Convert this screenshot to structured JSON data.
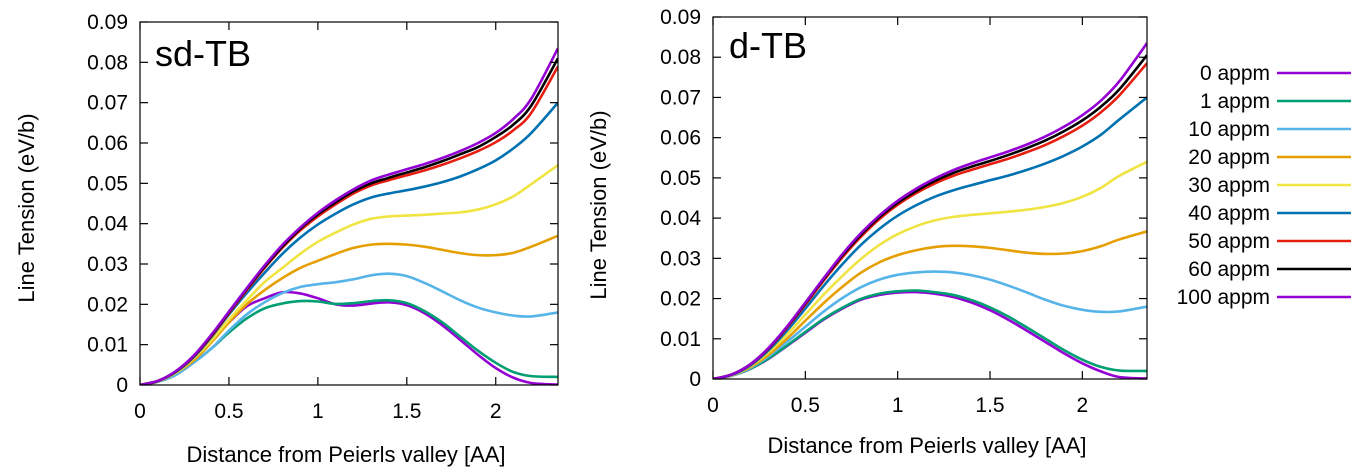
{
  "chart_data": [
    {
      "type": "line",
      "title": "sd-TB",
      "xlabel": "Distance from Peierls valley [AA]",
      "ylabel": "Line Tension (eV/b)",
      "xlim": [
        0,
        2.35
      ],
      "ylim": [
        0,
        0.09
      ],
      "xticks": [
        "0",
        "0.5",
        "1",
        "1.5",
        "2"
      ],
      "yticks": [
        "0",
        "0.01",
        "0.02",
        "0.03",
        "0.04",
        "0.05",
        "0.06",
        "0.07",
        "0.08",
        "0.09"
      ],
      "x": [
        0,
        0.1,
        0.2,
        0.3,
        0.4,
        0.5,
        0.6,
        0.7,
        0.8,
        0.9,
        1.0,
        1.1,
        1.2,
        1.3,
        1.4,
        1.5,
        1.6,
        1.7,
        1.8,
        1.9,
        2.0,
        2.1,
        2.2,
        2.35
      ],
      "series": [
        {
          "name": "0 appm",
          "color": "#9400d3",
          "values": [
            0,
            0.001,
            0.003,
            0.0065,
            0.011,
            0.0155,
            0.0195,
            0.0215,
            0.023,
            0.0227,
            0.0215,
            0.02,
            0.0197,
            0.0202,
            0.0205,
            0.0198,
            0.0178,
            0.0148,
            0.0112,
            0.0075,
            0.0042,
            0.0018,
            0.0005,
            0.0001
          ]
        },
        {
          "name": "1 appm",
          "color": "#009e73",
          "values": [
            0,
            0.0008,
            0.0025,
            0.0055,
            0.009,
            0.013,
            0.0165,
            0.019,
            0.0202,
            0.0208,
            0.0207,
            0.0201,
            0.0203,
            0.0208,
            0.021,
            0.0203,
            0.0183,
            0.0155,
            0.012,
            0.0085,
            0.0055,
            0.0032,
            0.0022,
            0.002
          ]
        },
        {
          "name": "10 appm",
          "color": "#56b4e9",
          "values": [
            0,
            0.0008,
            0.0025,
            0.0055,
            0.009,
            0.0135,
            0.0175,
            0.0205,
            0.0228,
            0.0243,
            0.025,
            0.0255,
            0.0262,
            0.0272,
            0.0276,
            0.027,
            0.0253,
            0.0232,
            0.021,
            0.0192,
            0.018,
            0.0172,
            0.017,
            0.018
          ]
        },
        {
          "name": "20 appm",
          "color": "#e69f00",
          "values": [
            0,
            0.0009,
            0.003,
            0.006,
            0.0105,
            0.0155,
            0.02,
            0.0235,
            0.0265,
            0.029,
            0.0308,
            0.0325,
            0.034,
            0.0348,
            0.035,
            0.0348,
            0.0343,
            0.0335,
            0.0327,
            0.0322,
            0.0322,
            0.0328,
            0.0343,
            0.037
          ]
        },
        {
          "name": "30 appm",
          "color": "#f0e442",
          "values": [
            0,
            0.001,
            0.003,
            0.0065,
            0.011,
            0.0162,
            0.021,
            0.0255,
            0.029,
            0.0325,
            0.0355,
            0.0378,
            0.0398,
            0.0412,
            0.0418,
            0.042,
            0.0422,
            0.0425,
            0.0428,
            0.0435,
            0.0448,
            0.0468,
            0.0498,
            0.0545
          ]
        },
        {
          "name": "40 appm",
          "color": "#0072b2",
          "values": [
            0,
            0.001,
            0.0032,
            0.0068,
            0.0118,
            0.0175,
            0.0228,
            0.0278,
            0.0325,
            0.0365,
            0.0398,
            0.0425,
            0.0448,
            0.0465,
            0.0475,
            0.0483,
            0.0492,
            0.0503,
            0.0517,
            0.0535,
            0.0557,
            0.0587,
            0.0625,
            0.07
          ]
        },
        {
          "name": "50 appm",
          "color": "#e51e10",
          "values": [
            0,
            0.001,
            0.0033,
            0.007,
            0.012,
            0.0178,
            0.0235,
            0.029,
            0.034,
            0.0383,
            0.0418,
            0.0448,
            0.0475,
            0.0495,
            0.0508,
            0.052,
            0.0532,
            0.0546,
            0.0562,
            0.058,
            0.0602,
            0.0632,
            0.0675,
            0.079
          ]
        },
        {
          "name": "60 appm",
          "color": "#000000",
          "values": [
            0,
            0.001,
            0.0033,
            0.0071,
            0.0122,
            0.018,
            0.0238,
            0.0293,
            0.0343,
            0.0387,
            0.0423,
            0.0453,
            0.048,
            0.05,
            0.0514,
            0.0527,
            0.054,
            0.0555,
            0.0572,
            0.059,
            0.0615,
            0.0646,
            0.0693,
            0.081
          ]
        },
        {
          "name": "100 appm",
          "color": "#9400d3",
          "values": [
            0,
            0.001,
            0.0034,
            0.0072,
            0.0124,
            0.0182,
            0.024,
            0.0296,
            0.0347,
            0.039,
            0.0427,
            0.0458,
            0.0485,
            0.0507,
            0.0522,
            0.0535,
            0.0548,
            0.0563,
            0.058,
            0.06,
            0.0625,
            0.066,
            0.071,
            0.0835
          ]
        }
      ]
    },
    {
      "type": "line",
      "title": "d-TB",
      "xlabel": "Distance from Peierls valley [AA]",
      "ylabel": "Line Tension (eV/b)",
      "xlim": [
        0,
        2.35
      ],
      "ylim": [
        0,
        0.09
      ],
      "xticks": [
        "0",
        "0.5",
        "1",
        "1.5",
        "2"
      ],
      "yticks": [
        "0",
        "0.01",
        "0.02",
        "0.03",
        "0.04",
        "0.05",
        "0.06",
        "0.07",
        "0.08",
        "0.09"
      ],
      "x": [
        0,
        0.1,
        0.2,
        0.3,
        0.4,
        0.5,
        0.6,
        0.7,
        0.8,
        0.9,
        1.0,
        1.1,
        1.2,
        1.3,
        1.4,
        1.5,
        1.6,
        1.7,
        1.8,
        1.9,
        2.0,
        2.1,
        2.2,
        2.35
      ],
      "series": [
        {
          "name": "0 appm",
          "color": "#9400d3",
          "values": [
            0,
            0.0008,
            0.0025,
            0.005,
            0.0082,
            0.0115,
            0.0148,
            0.0175,
            0.0197,
            0.0209,
            0.0215,
            0.0216,
            0.0212,
            0.0204,
            0.019,
            0.0171,
            0.0147,
            0.012,
            0.0092,
            0.0064,
            0.0039,
            0.0019,
            0.0005,
            0.0001
          ]
        },
        {
          "name": "1 appm",
          "color": "#009e73",
          "values": [
            0,
            0.0008,
            0.0025,
            0.0051,
            0.0083,
            0.0117,
            0.015,
            0.0177,
            0.0199,
            0.0212,
            0.0218,
            0.022,
            0.0216,
            0.0209,
            0.0196,
            0.0178,
            0.0155,
            0.0128,
            0.01,
            0.0072,
            0.0048,
            0.003,
            0.0021,
            0.002
          ]
        },
        {
          "name": "10 appm",
          "color": "#56b4e9",
          "values": [
            0,
            0.0008,
            0.0027,
            0.0056,
            0.0092,
            0.013,
            0.0168,
            0.0201,
            0.0228,
            0.0247,
            0.0259,
            0.0265,
            0.0267,
            0.0265,
            0.0258,
            0.0247,
            0.0232,
            0.0215,
            0.0197,
            0.0182,
            0.0172,
            0.0167,
            0.0168,
            0.018
          ]
        },
        {
          "name": "20 appm",
          "color": "#e69f00",
          "values": [
            0,
            0.0009,
            0.0029,
            0.006,
            0.01,
            0.0145,
            0.0189,
            0.0229,
            0.0264,
            0.029,
            0.0308,
            0.032,
            0.0328,
            0.0331,
            0.033,
            0.0326,
            0.032,
            0.0314,
            0.0311,
            0.0312,
            0.0318,
            0.033,
            0.0347,
            0.0367
          ]
        },
        {
          "name": "30 appm",
          "color": "#f0e442",
          "values": [
            0,
            0.0009,
            0.0031,
            0.0066,
            0.011,
            0.016,
            0.021,
            0.0256,
            0.0298,
            0.0333,
            0.036,
            0.038,
            0.0394,
            0.0403,
            0.0408,
            0.0412,
            0.0416,
            0.0421,
            0.0428,
            0.0438,
            0.0453,
            0.0475,
            0.0505,
            0.054
          ]
        },
        {
          "name": "40 appm",
          "color": "#0072b2",
          "values": [
            0,
            0.001,
            0.0033,
            0.0071,
            0.012,
            0.0175,
            0.0232,
            0.0285,
            0.0333,
            0.0373,
            0.0406,
            0.0432,
            0.0453,
            0.0469,
            0.0482,
            0.0494,
            0.0506,
            0.052,
            0.0536,
            0.0555,
            0.0578,
            0.0607,
            0.0645,
            0.07
          ]
        },
        {
          "name": "50 appm",
          "color": "#e51e10",
          "values": [
            0,
            0.0011,
            0.0035,
            0.0075,
            0.0127,
            0.0185,
            0.0245,
            0.0302,
            0.0353,
            0.0397,
            0.0433,
            0.0462,
            0.0486,
            0.0505,
            0.052,
            0.0534,
            0.0548,
            0.0564,
            0.0582,
            0.0604,
            0.063,
            0.0663,
            0.0705,
            0.0785
          ]
        },
        {
          "name": "60 appm",
          "color": "#000000",
          "values": [
            0,
            0.0011,
            0.0036,
            0.0076,
            0.0129,
            0.0188,
            0.0249,
            0.0307,
            0.0358,
            0.0402,
            0.0438,
            0.0467,
            0.0492,
            0.0512,
            0.0528,
            0.0542,
            0.0557,
            0.0574,
            0.0593,
            0.0616,
            0.0643,
            0.0677,
            0.072,
            0.0805
          ]
        },
        {
          "name": "100 appm",
          "color": "#9400d3",
          "values": [
            0,
            0.0011,
            0.0036,
            0.0077,
            0.013,
            0.019,
            0.0251,
            0.031,
            0.0362,
            0.0406,
            0.0443,
            0.0473,
            0.0498,
            0.0519,
            0.0536,
            0.0551,
            0.0566,
            0.0583,
            0.0603,
            0.0627,
            0.0656,
            0.0692,
            0.074,
            0.0835
          ]
        }
      ]
    }
  ]
}
